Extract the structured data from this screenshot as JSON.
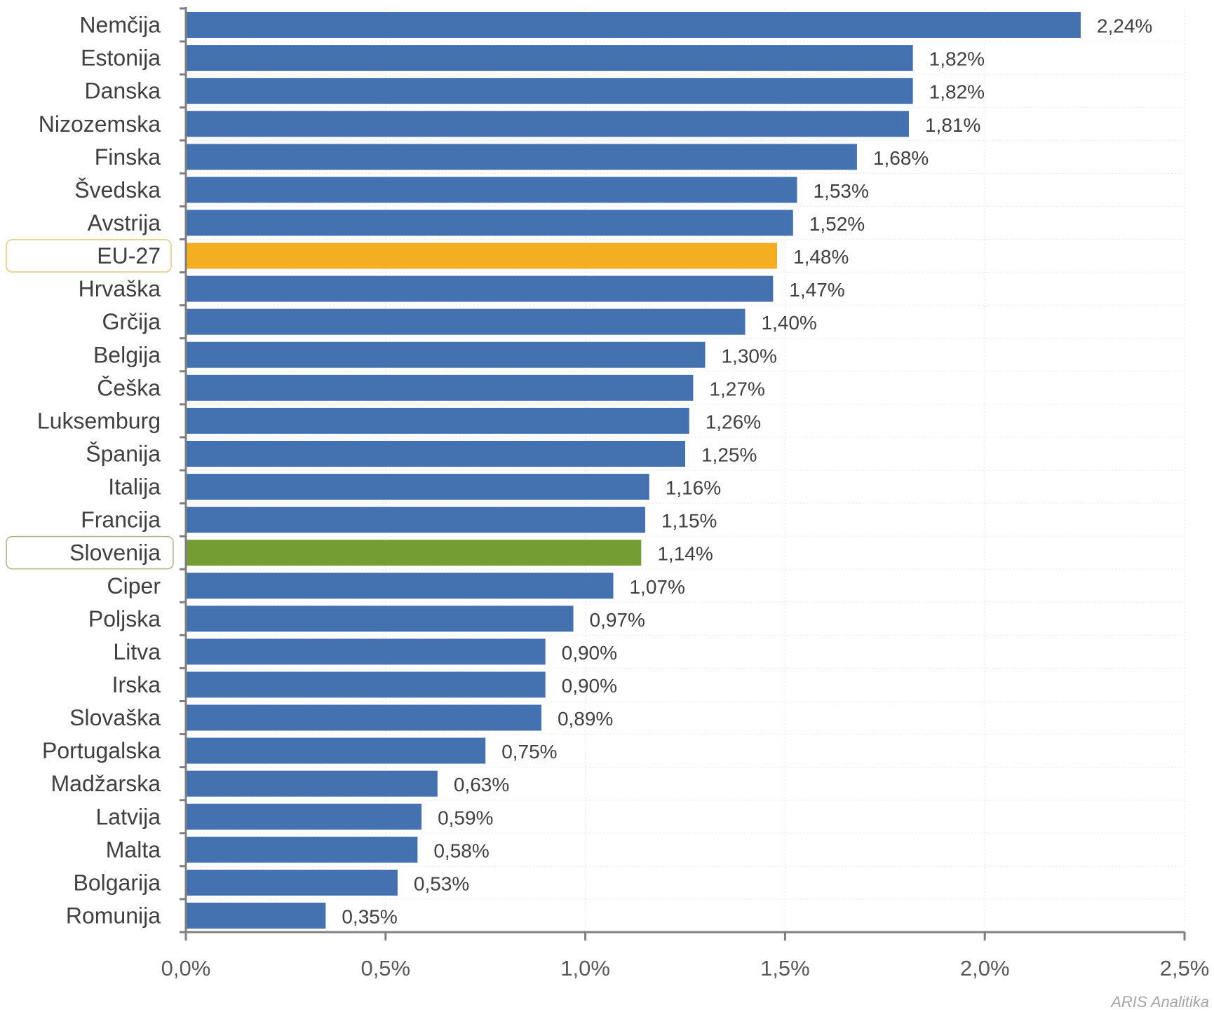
{
  "chart_data": {
    "type": "bar",
    "orientation": "horizontal",
    "categories": [
      "Nemčija",
      "Estonija",
      "Danska",
      "Nizozemska",
      "Finska",
      "Švedska",
      "Avstrija",
      "EU-27",
      "Hrvaška",
      "Grčija",
      "Belgija",
      "Češka",
      "Luksemburg",
      "Španija",
      "Italija",
      "Francija",
      "Slovenija",
      "Ciper",
      "Poljska",
      "Litva",
      "Irska",
      "Slovaška",
      "Portugalska",
      "Madžarska",
      "Latvija",
      "Malta",
      "Bolgarija",
      "Romunija"
    ],
    "values": [
      2.24,
      1.82,
      1.82,
      1.81,
      1.68,
      1.53,
      1.52,
      1.48,
      1.47,
      1.4,
      1.3,
      1.27,
      1.26,
      1.25,
      1.16,
      1.15,
      1.14,
      1.07,
      0.97,
      0.9,
      0.9,
      0.89,
      0.75,
      0.63,
      0.59,
      0.58,
      0.53,
      0.35
    ],
    "value_labels": [
      "2,24%",
      "1,82%",
      "1,82%",
      "1,81%",
      "1,68%",
      "1,53%",
      "1,52%",
      "1,48%",
      "1,47%",
      "1,40%",
      "1,30%",
      "1,27%",
      "1,26%",
      "1,25%",
      "1,16%",
      "1,15%",
      "1,14%",
      "1,07%",
      "0,97%",
      "0,90%",
      "0,90%",
      "0,89%",
      "0,75%",
      "0,63%",
      "0,59%",
      "0,58%",
      "0,53%",
      "0,35%"
    ],
    "xlim": [
      0,
      2.5
    ],
    "ticks": [
      0,
      0.5,
      1.0,
      1.5,
      2.0,
      2.5
    ],
    "tick_labels": [
      "0,0%",
      "0,5%",
      "1,0%",
      "1,5%",
      "2,0%",
      "2,5%"
    ],
    "grid": true,
    "highlights": {
      "EU-27": {
        "color": "#F4AE22",
        "box_color": "#E8C977"
      },
      "Slovenija": {
        "color": "#749D33",
        "box_color": "#B0B18A"
      }
    },
    "default_color": "#4472B0",
    "credit": "ARIS Analitika"
  }
}
